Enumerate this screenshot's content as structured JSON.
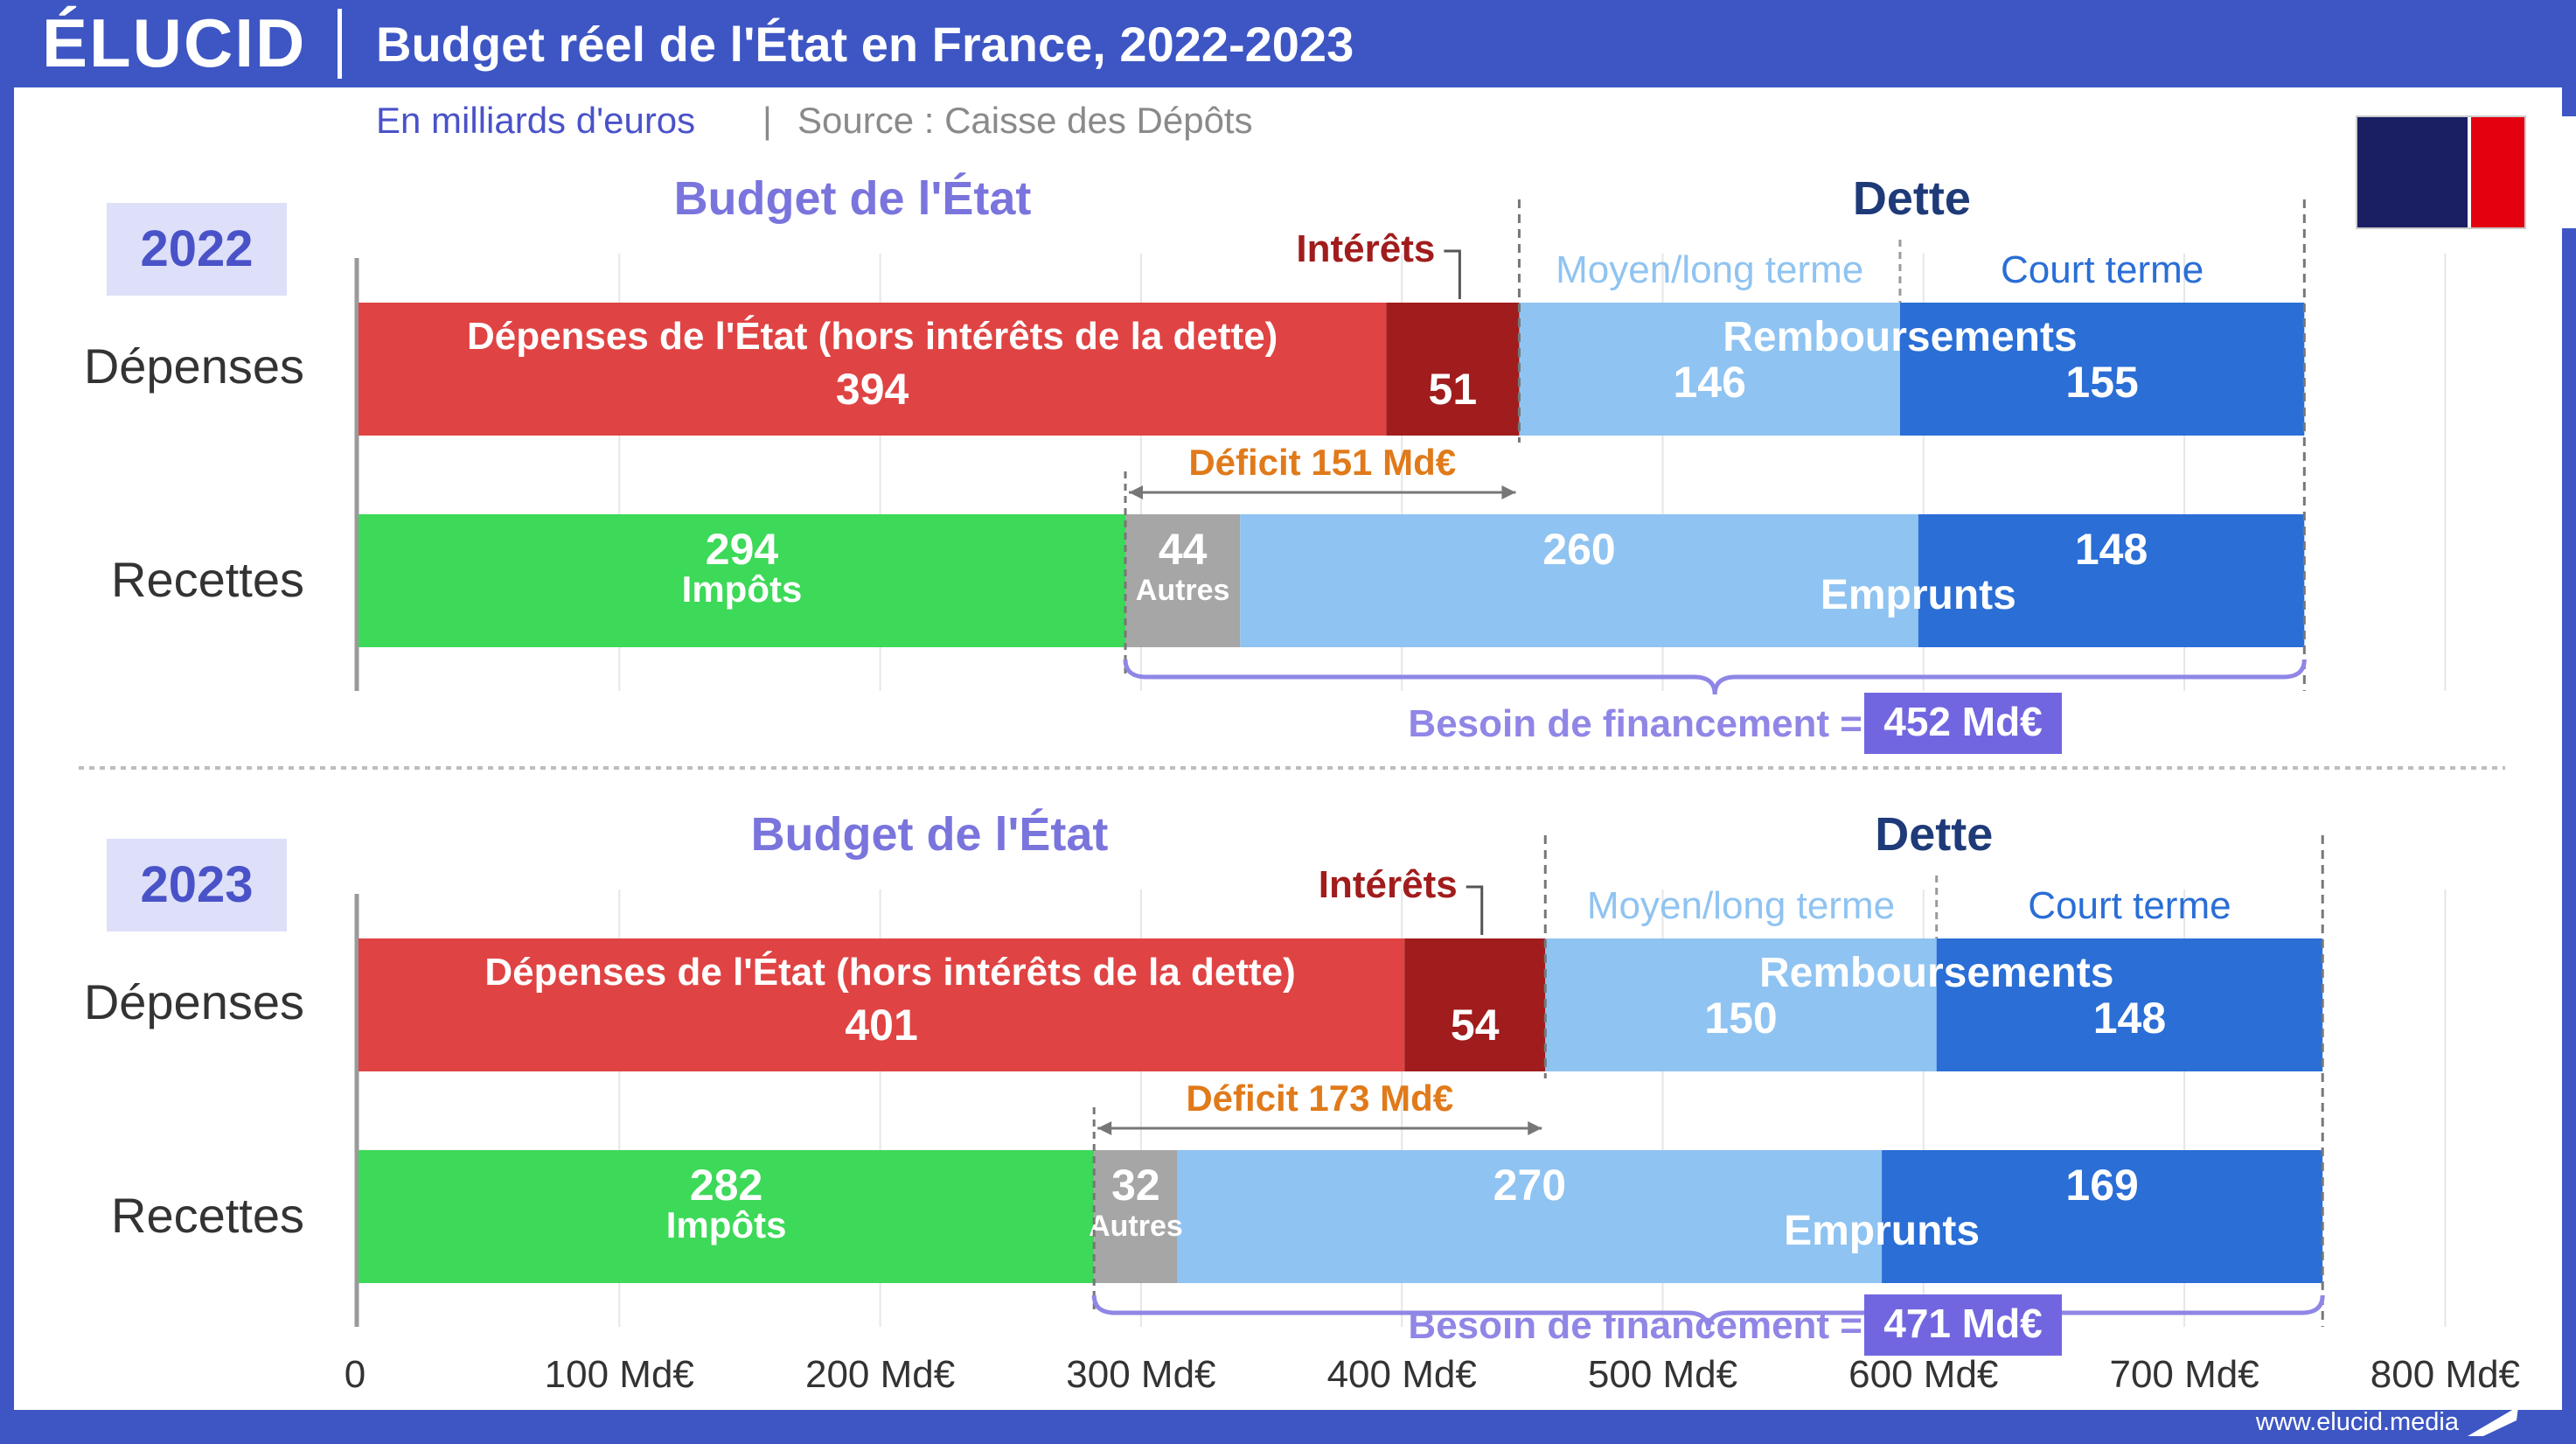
{
  "header": {
    "logo": "ÉLUCID",
    "title": "Budget réel de l'État en France, 2022-2023",
    "unit": "En milliards d'euros",
    "separator": "|",
    "source": "Source : Caisse des Dépôts"
  },
  "footer": {
    "url": "www.elucid.media"
  },
  "colors": {
    "frame_blue": "#3d56c4",
    "depenses_red": "#e04343",
    "interets_darkred": "#a11c1c",
    "moyen_long_lightblue": "#8fc3f1",
    "court_terme_blue": "#2a6ed6",
    "impots_green": "#3dd958",
    "autres_grey": "#a6a6a6",
    "deficit_orange": "#e07a1a",
    "besoin_purple": "#8f86e6",
    "besoin_box": "#7266e0",
    "year_box_bg": "#dde0f8",
    "year_text": "#4a52c8",
    "dette_title": "#1e3a78",
    "flag_blue": "#1a1e63",
    "flag_red": "#e3000f"
  },
  "chart_data": {
    "type": "bar",
    "orientation": "horizontal",
    "stacked": true,
    "unit": "Md€",
    "xlim": [
      0,
      800
    ],
    "xticks": [
      0,
      100,
      200,
      300,
      400,
      500,
      600,
      700,
      800
    ],
    "xtick_labels": [
      "0",
      "100 Md€",
      "200 Md€",
      "300 Md€",
      "400 Md€",
      "500 Md€",
      "600 Md€",
      "700 Md€",
      "800 Md€"
    ],
    "rows": [
      "Dépenses",
      "Recettes"
    ],
    "labels": {
      "budget_title": "Budget de l'État",
      "dette_title": "Dette",
      "interets": "Intérêts",
      "moyen_long": "Moyen/long terme",
      "court_terme": "Court terme",
      "depenses_segment": "Dépenses de l'État (hors intérêts de la dette)",
      "remboursements": "Remboursements",
      "impots": "Impôts",
      "autres": "Autres",
      "emprunts": "Emprunts",
      "besoin_prefix": "Besoin de financement =",
      "deficit_prefix": "Déficit"
    },
    "panels": [
      {
        "year": "2022",
        "depenses": {
          "etat_hors_interets": 394,
          "interets": 51,
          "remb_moyen_long": 146,
          "remb_court": 155
        },
        "recettes": {
          "impots": 294,
          "autres": 44,
          "emprunts_moyen_long": 260,
          "emprunts_court": 148
        },
        "deficit": 151,
        "deficit_label": "Déficit 151 Md€",
        "besoin_financement": 452,
        "besoin_label": "452 Md€"
      },
      {
        "year": "2023",
        "depenses": {
          "etat_hors_interets": 401,
          "interets": 54,
          "remb_moyen_long": 150,
          "remb_court": 148
        },
        "recettes": {
          "impots": 282,
          "autres": 32,
          "emprunts_moyen_long": 270,
          "emprunts_court": 169
        },
        "deficit": 173,
        "deficit_label": "Déficit 173 Md€",
        "besoin_financement": 471,
        "besoin_label": "471 Md€"
      }
    ]
  }
}
